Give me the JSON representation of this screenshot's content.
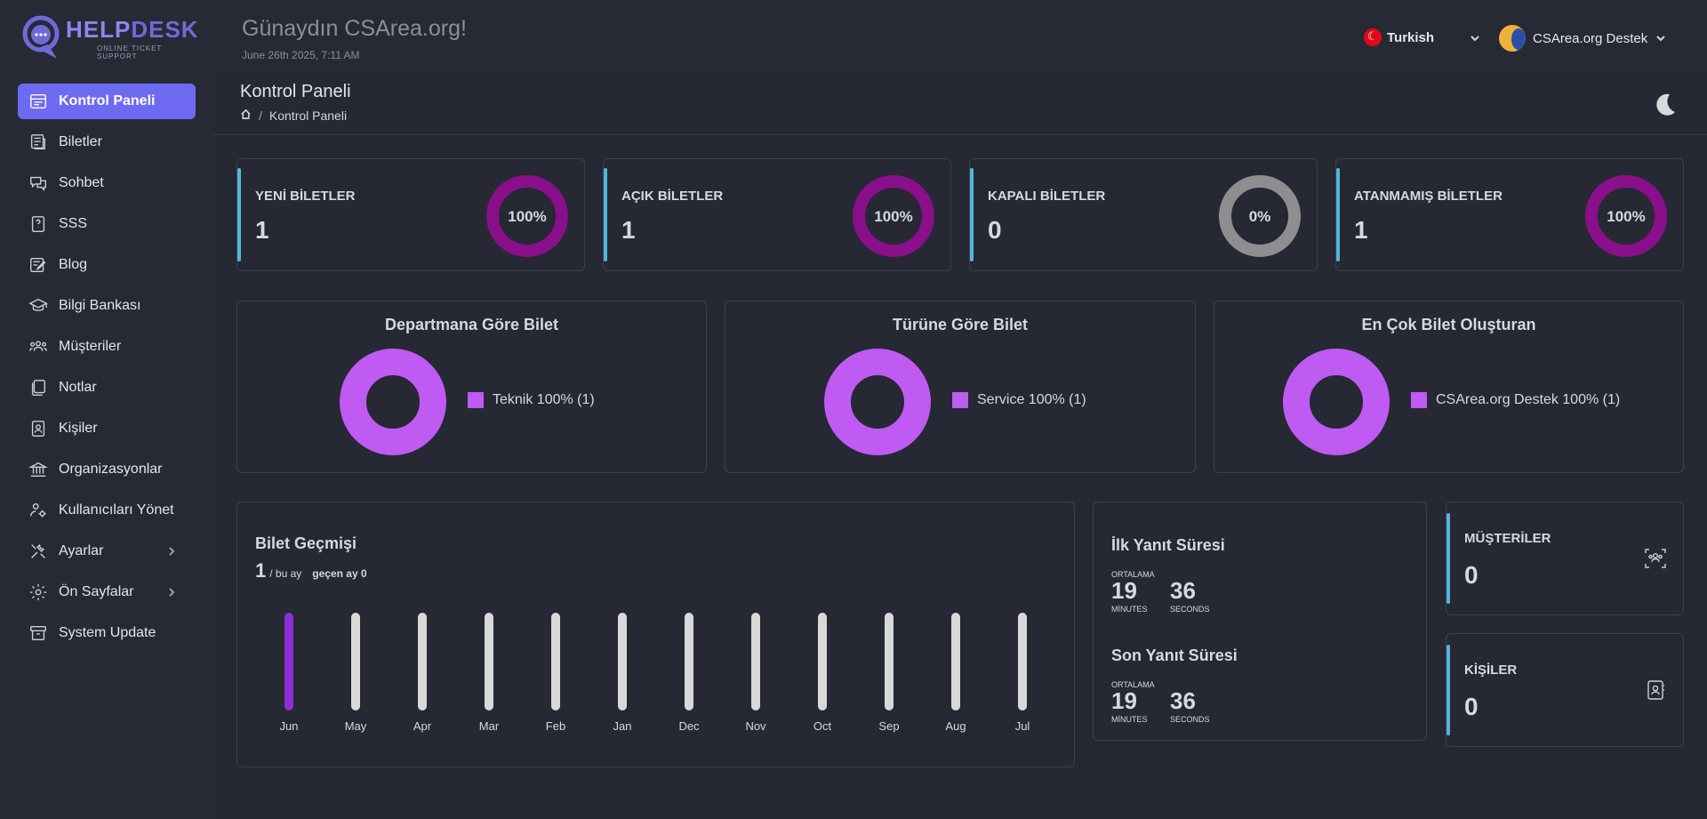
{
  "brand": {
    "name_part1": "HELP",
    "name_part2": "DESK",
    "tagline": "ONLINE TICKET SUPPORT"
  },
  "sidebar": {
    "items": [
      {
        "label": "Kontrol Paneli",
        "icon": "dashboard-icon",
        "active": true
      },
      {
        "label": "Biletler",
        "icon": "ticket-icon"
      },
      {
        "label": "Sohbet",
        "icon": "chat-icon"
      },
      {
        "label": "SSS",
        "icon": "faq-icon"
      },
      {
        "label": "Blog",
        "icon": "blog-icon"
      },
      {
        "label": "Bilgi Bankası",
        "icon": "knowledge-icon"
      },
      {
        "label": "Müşteriler",
        "icon": "customers-icon"
      },
      {
        "label": "Notlar",
        "icon": "notes-icon"
      },
      {
        "label": "Kişiler",
        "icon": "contacts-icon"
      },
      {
        "label": "Organizasyonlar",
        "icon": "organization-icon"
      },
      {
        "label": "Kullanıcıları Yönet",
        "icon": "users-icon"
      },
      {
        "label": "Ayarlar",
        "icon": "settings-icon",
        "submenu": true
      },
      {
        "label": "Ön Sayfalar",
        "icon": "front-pages-icon",
        "submenu": true
      },
      {
        "label": "System Update",
        "icon": "update-icon"
      }
    ]
  },
  "header": {
    "greeting": "Günaydın CSArea.org!",
    "date": "June 26th 2025, 7:11 AM",
    "language": "Turkish",
    "user_name": "CSArea.org Destek"
  },
  "page": {
    "title": "Kontrol Paneli",
    "breadcrumb": "Kontrol Paneli"
  },
  "stats": [
    {
      "label": "YENİ BİLETLER",
      "value": "1",
      "percent": 100,
      "percent_label": "100%",
      "color": "#8a0f8a"
    },
    {
      "label": "AÇIK BİLETLER",
      "value": "1",
      "percent": 100,
      "percent_label": "100%",
      "color": "#8a0f8a"
    },
    {
      "label": "KAPALI BİLETLER",
      "value": "0",
      "percent": 0,
      "percent_label": "0%",
      "color": "#8e8e92"
    },
    {
      "label": "ATANMAMIŞ BİLETLER",
      "value": "1",
      "percent": 100,
      "percent_label": "100%",
      "color": "#8a0f8a"
    }
  ],
  "charts": [
    {
      "title": "Departmana Göre Bilet",
      "legend": "Teknik 100% (1)"
    },
    {
      "title": "Türüne Göre Bilet",
      "legend": "Service 100% (1)"
    },
    {
      "title": "En Çok Bilet Oluşturan",
      "legend": "CSArea.org Destek 100% (1)"
    }
  ],
  "history": {
    "title": "Bilet Geçmişi",
    "this_month": "1",
    "this_month_label": "/ bu ay",
    "last_month_label": "geçen ay 0"
  },
  "chart_data": {
    "type": "bar",
    "categories": [
      "Jun",
      "May",
      "Apr",
      "Mar",
      "Feb",
      "Jan",
      "Dec",
      "Nov",
      "Oct",
      "Sep",
      "Aug",
      "Jul"
    ],
    "values": [
      1,
      0,
      0,
      0,
      0,
      0,
      0,
      0,
      0,
      0,
      0,
      0
    ],
    "title": "Bilet Geçmişi",
    "highlight_color": "#8b2fd6",
    "track_color": "#d9d9d9"
  },
  "response": {
    "first_title": "İlk Yanıt Süresi",
    "last_title": "Son Yanıt Süresi",
    "avg_label": "ORTALAMA",
    "first_minutes": "19",
    "first_seconds": "36",
    "last_minutes": "19",
    "last_seconds": "36",
    "minutes_label": "MİNUTES",
    "seconds_label": "SECONDS"
  },
  "mini_stats": [
    {
      "label": "MÜŞTERİLER",
      "value": "0"
    },
    {
      "label": "KİŞİLER",
      "value": "0"
    }
  ],
  "colors": {
    "accent": "#6e6af2",
    "stat_bar": "#55b5d8",
    "donut": "#bf5af2"
  }
}
